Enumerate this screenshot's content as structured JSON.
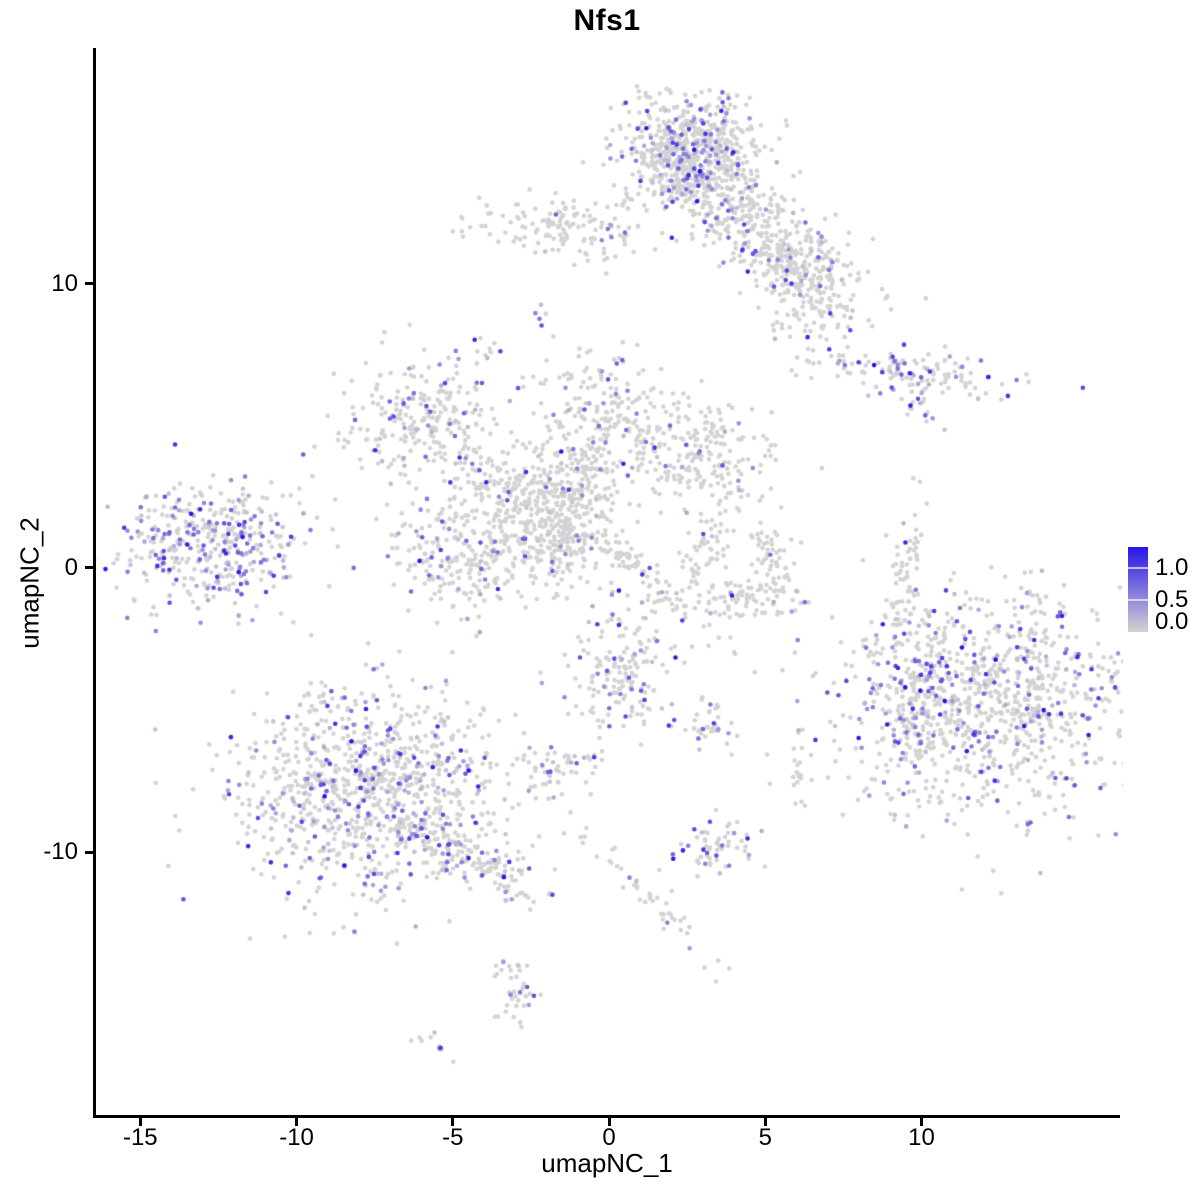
{
  "chart_data": {
    "type": "scatter",
    "title": "Nfs1",
    "xlabel": "umapNC_1",
    "ylabel": "umapNC_2",
    "xlim": [
      -16.45,
      16.32
    ],
    "ylim": [
      -19.3,
      18.21
    ],
    "x_ticks": [
      -15,
      -10,
      -5,
      0,
      5,
      10
    ],
    "y_ticks": [
      -10,
      0,
      10
    ],
    "grid": false,
    "legend_position": "right",
    "legend": {
      "ticks": [
        {
          "label": "1.0",
          "value": 1.0
        },
        {
          "label": "0.5",
          "value": 0.5
        },
        {
          "label": "0.0",
          "value": 0.0
        }
      ],
      "max_value": 1.32
    },
    "colors": {
      "low": "#d3d3d3",
      "high": "#2814e6"
    },
    "point_radius": 2.3,
    "seed": 20,
    "clusters": [
      {
        "name": "top-main",
        "x": 2.75,
        "y": 14.55,
        "sx": 1.05,
        "sy": 0.95,
        "rot": 0,
        "n": 650,
        "expr_frac": 0.16,
        "expr_mean": 0.5
      },
      {
        "name": "top-arm",
        "x": 4.99,
        "y": 11.7,
        "sx": 2.1,
        "sy": 0.7,
        "rot": -42,
        "n": 430,
        "expr_frac": 0.11,
        "expr_mean": 0.5
      },
      {
        "name": "top-arm-tip",
        "x": 6.43,
        "y": 9.8,
        "sx": 0.75,
        "sy": 0.95,
        "rot": 15,
        "n": 130,
        "expr_frac": 0.1,
        "expr_mean": 0.45
      },
      {
        "name": "top-left-strip",
        "x": -1.1,
        "y": 11.9,
        "sx": 1.45,
        "sy": 0.6,
        "rot": -5,
        "n": 150,
        "expr_frac": 0.05,
        "expr_mean": 0.5
      },
      {
        "name": "speck-a",
        "x": -2.2,
        "y": 8.95,
        "sx": 0.12,
        "sy": 0.25,
        "rot": 0,
        "n": 5,
        "expr_frac": 0.2,
        "expr_mean": 0.55
      },
      {
        "name": "speck-b",
        "x": -3.9,
        "y": 7.65,
        "sx": 0.22,
        "sy": 0.22,
        "rot": 0,
        "n": 8,
        "expr_frac": 0.25,
        "expr_mean": 0.4
      },
      {
        "name": "right-streak",
        "x": 9.6,
        "y": 6.9,
        "sx": 1.85,
        "sy": 0.42,
        "rot": -6,
        "n": 140,
        "expr_frac": 0.22,
        "expr_mean": 0.55
      },
      {
        "name": "right-streak-tail",
        "x": 9.9,
        "y": 5.55,
        "sx": 0.55,
        "sy": 0.14,
        "rot": -40,
        "n": 14,
        "expr_frac": 0.3,
        "expr_mean": 0.5
      },
      {
        "name": "mid-left-blob",
        "x": -6.05,
        "y": 5.4,
        "sx": 1.3,
        "sy": 1.05,
        "rot": 20,
        "n": 240,
        "expr_frac": 0.18,
        "expr_mean": 0.5
      },
      {
        "name": "bridge",
        "x": -3.8,
        "y": 3.1,
        "sx": 1.05,
        "sy": 0.45,
        "rot": -35,
        "n": 90,
        "expr_frac": 0.1,
        "expr_mean": 0.45
      },
      {
        "name": "mid-top-blob",
        "x": -0.3,
        "y": 5.6,
        "sx": 0.95,
        "sy": 1.05,
        "rot": 0,
        "n": 170,
        "expr_frac": 0.12,
        "expr_mean": 0.5
      },
      {
        "name": "mid-top-stem",
        "x": -0.86,
        "y": 3.27,
        "sx": 0.9,
        "sy": 0.25,
        "rot": 62,
        "n": 60,
        "expr_frac": 0.1,
        "expr_mean": 0.45
      },
      {
        "name": "mid-right-blob",
        "x": 2.75,
        "y": 4.1,
        "sx": 1.35,
        "sy": 0.95,
        "rot": -10,
        "n": 230,
        "expr_frac": 0.1,
        "expr_mean": 0.45
      },
      {
        "name": "center-blob",
        "x": -2.05,
        "y": 2.4,
        "sx": 1.2,
        "sy": 1.1,
        "rot": 0,
        "n": 290,
        "expr_frac": 0.07,
        "expr_mean": 0.45
      },
      {
        "name": "center-stem",
        "x": -1.55,
        "y": 0.8,
        "sx": 0.8,
        "sy": 0.85,
        "rot": 0,
        "n": 130,
        "expr_frac": 0.08,
        "expr_mean": 0.45
      },
      {
        "name": "center-diag-streak",
        "x": 0.85,
        "y": 0.1,
        "sx": 1.7,
        "sy": 0.28,
        "rot": -45,
        "n": 100,
        "expr_frac": 0.12,
        "expr_mean": 0.5
      },
      {
        "name": "far-left",
        "x": -12.95,
        "y": 0.7,
        "sx": 1.55,
        "sy": 1.15,
        "rot": 10,
        "n": 400,
        "expr_frac": 0.42,
        "expr_mean": 0.5
      },
      {
        "name": "mid-left-low",
        "x": -4.7,
        "y": 0.55,
        "sx": 1.2,
        "sy": 1.05,
        "rot": 0,
        "n": 240,
        "expr_frac": 0.14,
        "expr_mean": 0.5
      },
      {
        "name": "crescent-left",
        "x": 3.15,
        "y": 0.75,
        "sx": 0.35,
        "sy": 0.75,
        "rot": -15,
        "n": 55,
        "expr_frac": 0.03,
        "expr_mean": 0.4
      },
      {
        "name": "crescent-bottom",
        "x": 4.25,
        "y": -1.05,
        "sx": 0.9,
        "sy": 0.35,
        "rot": 0,
        "n": 85,
        "expr_frac": 0.04,
        "expr_mean": 0.4
      },
      {
        "name": "crescent-right",
        "x": 5.25,
        "y": 0.35,
        "sx": 0.35,
        "sy": 0.7,
        "rot": 15,
        "n": 50,
        "expr_frac": 0.04,
        "expr_mean": 0.4
      },
      {
        "name": "right-vert-streak",
        "x": 9.5,
        "y": -0.1,
        "sx": 0.22,
        "sy": 1.45,
        "rot": -8,
        "n": 60,
        "expr_frac": 0.08,
        "expr_mean": 0.45
      },
      {
        "name": "center-low-blob",
        "x": 0.4,
        "y": -3.65,
        "sx": 0.9,
        "sy": 1.15,
        "rot": 0,
        "n": 180,
        "expr_frac": 0.17,
        "expr_mean": 0.62
      },
      {
        "name": "center-low-side",
        "x": 3.25,
        "y": -5.5,
        "sx": 0.4,
        "sy": 0.5,
        "rot": 0,
        "n": 35,
        "expr_frac": 0.2,
        "expr_mean": 0.5
      },
      {
        "name": "right-big",
        "x": 12.2,
        "y": -4.65,
        "sx": 2.6,
        "sy": 2.05,
        "rot": 0,
        "n": 1000,
        "expr_frac": 0.22,
        "expr_mean": 0.55
      },
      {
        "name": "right-big-edge",
        "x": 9.85,
        "y": -4.9,
        "sx": 0.45,
        "sy": 1.8,
        "rot": -12,
        "n": 110,
        "expr_frac": 0.25,
        "expr_mean": 0.5
      },
      {
        "name": "bottom-left-big",
        "x": -7.7,
        "y": -7.8,
        "sx": 2.1,
        "sy": 1.8,
        "rot": 0,
        "n": 950,
        "expr_frac": 0.2,
        "expr_mean": 0.5
      },
      {
        "name": "bottom-left-tail",
        "x": -4.55,
        "y": -10.1,
        "sx": 1.3,
        "sy": 0.45,
        "rot": -30,
        "n": 170,
        "expr_frac": 0.22,
        "expr_mean": 0.55
      },
      {
        "name": "small-mid-low",
        "x": -1.65,
        "y": -7.15,
        "sx": 0.7,
        "sy": 0.5,
        "rot": 0,
        "n": 60,
        "expr_frac": 0.25,
        "expr_mean": 0.5
      },
      {
        "name": "tiny-right-low",
        "x": 6.1,
        "y": -7.1,
        "sx": 0.18,
        "sy": 0.65,
        "rot": 0,
        "n": 16,
        "expr_frac": 0.12,
        "expr_mean": 0.5
      },
      {
        "name": "bottom-clump",
        "x": 3.5,
        "y": -9.85,
        "sx": 0.75,
        "sy": 0.5,
        "rot": 0,
        "n": 60,
        "expr_frac": 0.28,
        "expr_mean": 0.55
      },
      {
        "name": "bottom-trail",
        "x": 1.3,
        "y": -11.6,
        "sx": 1.6,
        "sy": 0.22,
        "rot": -50,
        "n": 45,
        "expr_frac": 0.12,
        "expr_mean": 0.5
      },
      {
        "name": "bottom-small",
        "x": -3.0,
        "y": -14.7,
        "sx": 0.35,
        "sy": 0.85,
        "rot": 5,
        "n": 40,
        "expr_frac": 0.15,
        "expr_mean": 0.55
      },
      {
        "name": "bottom-speck",
        "x": -5.65,
        "y": -16.6,
        "sx": 0.35,
        "sy": 0.18,
        "rot": -20,
        "n": 10,
        "expr_frac": 0.12,
        "expr_mean": 0.5
      }
    ]
  }
}
